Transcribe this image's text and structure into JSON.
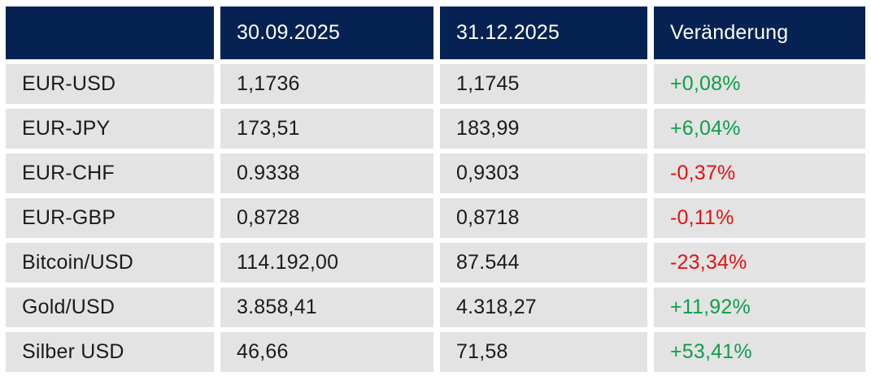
{
  "table": {
    "columns": [
      {
        "label": ""
      },
      {
        "label": "30.09.2025"
      },
      {
        "label": "31.12.2025"
      },
      {
        "label": "Veränderung"
      }
    ],
    "rows": [
      {
        "label": "EUR-USD",
        "val_sep": "1,1736",
        "val_dec": "1,1745",
        "change": "+0,08%",
        "direction": "up",
        "change_color": "#0d9f4a"
      },
      {
        "label": "EUR-JPY",
        "val_sep": "173,51",
        "val_dec": "183,99",
        "change": "+6,04%",
        "direction": "up",
        "change_color": "#0d9f4a"
      },
      {
        "label": "EUR-CHF",
        "val_sep": "0.9338",
        "val_dec": "0,9303",
        "change": "-0,37%",
        "direction": "down",
        "change_color": "#e51111"
      },
      {
        "label": "EUR-GBP",
        "val_sep": "0,8728",
        "val_dec": "0,8718",
        "change": "-0,11%",
        "direction": "down",
        "change_color": "#e51111"
      },
      {
        "label": "Bitcoin/USD",
        "val_sep": "114.192,00",
        "val_dec": "87.544",
        "change": "-23,34%",
        "direction": "down",
        "change_color": "#e51111"
      },
      {
        "label": "Gold/USD",
        "val_sep": "3.858,41",
        "val_dec": "4.318,27",
        "change": "+11,92%",
        "direction": "up",
        "change_color": "#0d9f4a"
      },
      {
        "label": "Silber USD",
        "val_sep": "46,66",
        "val_dec": "71,58",
        "change": "+53,41%",
        "direction": "up",
        "change_color": "#0d9f4a"
      }
    ]
  },
  "colors": {
    "header_bg": "#062253",
    "header_text": "#ffffff",
    "row_bg": "#e3e3e3",
    "body_text": "#1b1b1b",
    "positive": "#0d9f4a",
    "negative": "#e51111",
    "page_bg": "#ffffff"
  }
}
